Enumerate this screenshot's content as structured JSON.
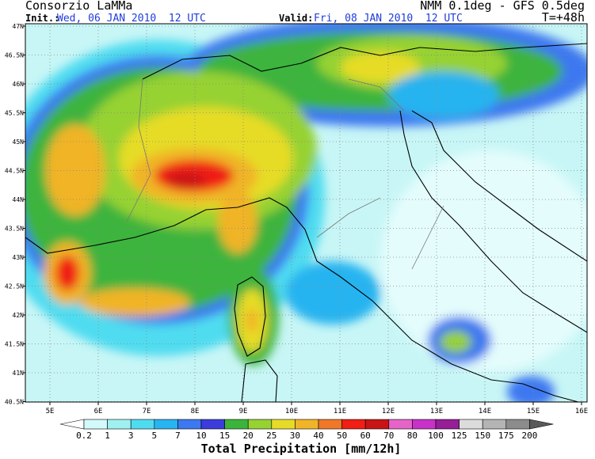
{
  "header": {
    "title": "Consorzio LaMMa",
    "model": "NMM 0.1deg - GFS 0.5deg",
    "init_label": "Init.:",
    "init_time": "Wed, 06 JAN 2010  12 UTC",
    "valid_label": "Valid:",
    "valid_time": "Fri, 08 JAN 2010  12 UTC",
    "lead_time": "T=+48h"
  },
  "map": {
    "lon_labels": [
      "5E",
      "6E",
      "7E",
      "8E",
      "9E",
      "10E",
      "11E",
      "12E",
      "13E",
      "14E",
      "15E",
      "16E"
    ],
    "lat_labels": [
      "47N",
      "46.5N",
      "46N",
      "45.5N",
      "45N",
      "44.5N",
      "44N",
      "43.5N",
      "43N",
      "42.5N",
      "42N",
      "41.5N",
      "41N",
      "40.5N"
    ]
  },
  "colorbar": {
    "ticks": [
      0.2,
      1,
      3,
      5,
      7,
      10,
      15,
      20,
      25,
      30,
      40,
      50,
      60,
      70,
      80,
      100,
      125,
      150,
      175,
      200
    ],
    "colors": [
      "#ffffff",
      "#d2fafa",
      "#a0f0f0",
      "#50dcf0",
      "#28b4f0",
      "#3c78f0",
      "#3c3cdc",
      "#3cb43c",
      "#96d232",
      "#e6dc28",
      "#f0b428",
      "#f07828",
      "#f01e14",
      "#c81414",
      "#e664c8",
      "#c832c8",
      "#961e96",
      "#dcdcdc",
      "#b4b4b4",
      "#8c8c8c",
      "#5a5a5a"
    ],
    "title": "Total Precipitation [mm/12h]"
  }
}
